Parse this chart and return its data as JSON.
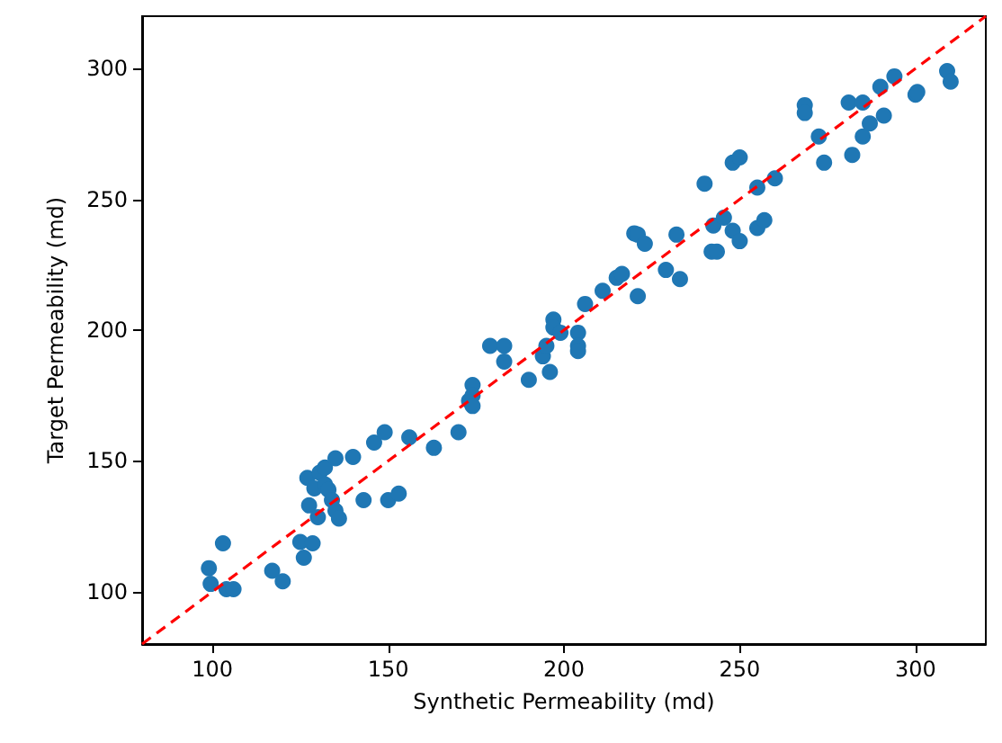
{
  "chart_data": {
    "type": "scatter",
    "xlabel": "Synthetic Permeability (md)",
    "ylabel": "Target Permeability (md)",
    "xlim": [
      80,
      320
    ],
    "ylim": [
      80,
      320
    ],
    "xticks": [
      100,
      150,
      200,
      250,
      300
    ],
    "yticks": [
      100,
      150,
      200,
      250,
      300
    ],
    "grid": false,
    "marker": "circle",
    "series": [
      {
        "color": "#1f77b4",
        "x": [
          103,
          99,
          99.5,
          104,
          106,
          117,
          120,
          125,
          128.5,
          126,
          127,
          130.5,
          132,
          135,
          129,
          132,
          133,
          134,
          127.5,
          130,
          135,
          136,
          140,
          143,
          150,
          153,
          146,
          149,
          156,
          163,
          170,
          173,
          174,
          174,
          174,
          179,
          183,
          183,
          190,
          194,
          195,
          196,
          197,
          197,
          199,
          204,
          204,
          204,
          206,
          211,
          215,
          216.5,
          221,
          220,
          221,
          223,
          229,
          233,
          232,
          240,
          242,
          243.5,
          242.5,
          245.5,
          248,
          250,
          248,
          250,
          255,
          260,
          255,
          257,
          268.5,
          268.5,
          272.5,
          274,
          281,
          282,
          285,
          287,
          291,
          285,
          290,
          294,
          300,
          300.5,
          309,
          310
        ],
        "values": [
          118.5,
          109,
          103,
          101,
          101,
          108,
          104,
          119,
          118.5,
          113,
          143.5,
          145.5,
          147.5,
          151,
          139.5,
          141,
          139,
          135,
          133,
          128.5,
          131,
          128,
          151.5,
          135,
          135,
          137.5,
          157,
          161,
          159,
          155,
          161,
          173,
          179,
          175,
          171,
          194,
          194,
          188,
          181,
          190,
          194,
          184,
          204,
          201,
          199,
          199,
          194,
          192,
          210,
          215,
          220,
          221.5,
          213,
          237,
          236.5,
          233,
          223,
          219.5,
          236.5,
          256,
          230,
          230,
          240,
          243,
          238,
          234,
          264,
          266,
          254.5,
          258,
          239,
          242,
          286,
          283,
          274,
          264,
          287,
          267,
          274,
          279,
          282,
          287,
          293,
          297,
          290,
          291,
          299,
          295
        ]
      },
      {
        "type": "line",
        "color": "#ff0000",
        "line_style": "dashed",
        "marker": "none",
        "x": [
          80,
          320
        ],
        "values": [
          80,
          320
        ]
      }
    ]
  }
}
